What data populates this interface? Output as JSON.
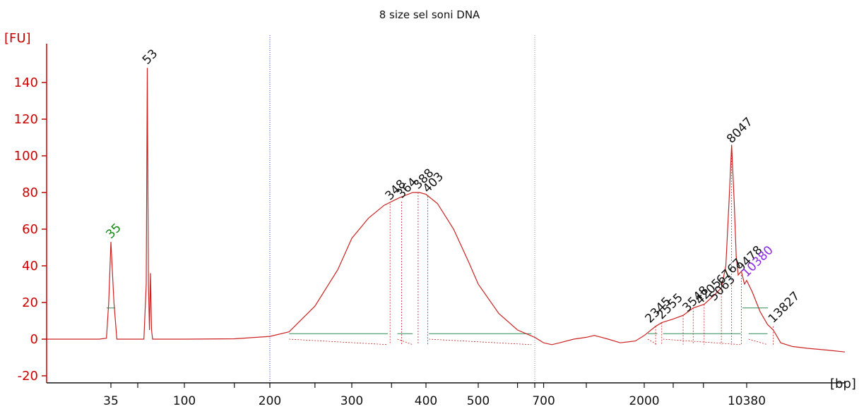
{
  "chart_data": {
    "type": "line",
    "title": "8 size sel soni DNA",
    "y_unit_label": "[FU]",
    "x_unit_label": "[bp]",
    "ylim": [
      -20,
      150
    ],
    "y_ticks": [
      -20,
      0,
      20,
      40,
      60,
      80,
      100,
      120,
      140
    ],
    "x_tick_labels": [
      "35",
      "100",
      "200",
      "300",
      "400",
      "500",
      "700",
      "2000",
      "10380"
    ],
    "region_markers_bp": [
      200,
      650
    ],
    "marker_peaks_bp": [
      35,
      10380
    ],
    "peak_labels": [
      {
        "text": "35",
        "kind": "lower-marker",
        "x_bp": 35,
        "y_fu": 53
      },
      {
        "text": "53",
        "kind": "peak",
        "x_bp": 53,
        "y_fu": 148
      },
      {
        "text": "348",
        "kind": "peak",
        "x_bp": 348,
        "y_fu": 74
      },
      {
        "text": "364",
        "kind": "peak",
        "x_bp": 364,
        "y_fu": 75
      },
      {
        "text": "388",
        "kind": "peak",
        "x_bp": 388,
        "y_fu": 80
      },
      {
        "text": "403",
        "kind": "peak",
        "x_bp": 403,
        "y_fu": 78
      },
      {
        "text": "8047",
        "kind": "peak",
        "x_bp": 8047,
        "y_fu": 105
      },
      {
        "text": "2345",
        "kind": "peak",
        "x_bp": 2345,
        "y_fu": 7
      },
      {
        "text": "2555",
        "kind": "peak",
        "x_bp": 2555,
        "y_fu": 9
      },
      {
        "text": "3548",
        "kind": "peak",
        "x_bp": 3548,
        "y_fu": 13
      },
      {
        "text": "4205",
        "kind": "peak",
        "x_bp": 4205,
        "y_fu": 17
      },
      {
        "text": "5063",
        "kind": "peak",
        "x_bp": 5063,
        "y_fu": 19
      },
      {
        "text": "6767",
        "kind": "peak",
        "x_bp": 6767,
        "y_fu": 28
      },
      {
        "text": "9478",
        "kind": "peak",
        "x_bp": 9478,
        "y_fu": 35
      },
      {
        "text": "10380",
        "kind": "upper-marker",
        "x_bp": 10380,
        "y_fu": 32
      },
      {
        "text": "13827",
        "kind": "peak",
        "x_bp": 13827,
        "y_fu": 7
      }
    ],
    "series": [
      {
        "points": [
          [
            15,
            0
          ],
          [
            30,
            0
          ],
          [
            33,
            0.5
          ],
          [
            34,
            20
          ],
          [
            35,
            53
          ],
          [
            36,
            20
          ],
          [
            37,
            0
          ],
          [
            40,
            0
          ],
          [
            45,
            0
          ],
          [
            50,
            0
          ],
          [
            52,
            30
          ],
          [
            53,
            148
          ],
          [
            54,
            30
          ],
          [
            55,
            5
          ],
          [
            56,
            36
          ],
          [
            57,
            5
          ],
          [
            58,
            0
          ],
          [
            60,
            0
          ],
          [
            80,
            0
          ],
          [
            100,
            0
          ],
          [
            150,
            0.2
          ],
          [
            200,
            1.5
          ],
          [
            220,
            4
          ],
          [
            250,
            18
          ],
          [
            280,
            38
          ],
          [
            300,
            55
          ],
          [
            320,
            66
          ],
          [
            340,
            73
          ],
          [
            360,
            77
          ],
          [
            380,
            80
          ],
          [
            390,
            80
          ],
          [
            400,
            79
          ],
          [
            420,
            74
          ],
          [
            450,
            60
          ],
          [
            480,
            42
          ],
          [
            500,
            30
          ],
          [
            550,
            14
          ],
          [
            600,
            5
          ],
          [
            650,
            1
          ],
          [
            700,
            -2
          ],
          [
            750,
            -3
          ],
          [
            800,
            -2
          ],
          [
            900,
            0
          ],
          [
            1000,
            1
          ],
          [
            1100,
            2
          ],
          [
            1200,
            1
          ],
          [
            1300,
            0
          ],
          [
            1500,
            -2
          ],
          [
            1800,
            -1
          ],
          [
            2000,
            2
          ],
          [
            2345,
            7
          ],
          [
            2555,
            9
          ],
          [
            3000,
            11
          ],
          [
            3548,
            13
          ],
          [
            4205,
            17
          ],
          [
            5063,
            19
          ],
          [
            6000,
            24
          ],
          [
            6767,
            28
          ],
          [
            7300,
            40
          ],
          [
            7700,
            75
          ],
          [
            8047,
            106
          ],
          [
            8400,
            75
          ],
          [
            8700,
            45
          ],
          [
            9000,
            35
          ],
          [
            9478,
            37
          ],
          [
            10000,
            30
          ],
          [
            10380,
            32
          ],
          [
            11000,
            26
          ],
          [
            12000,
            15
          ],
          [
            13000,
            8
          ],
          [
            13827,
            5
          ],
          [
            15000,
            -2
          ],
          [
            17000,
            -4
          ],
          [
            20000,
            -5
          ],
          [
            25000,
            -6
          ],
          [
            30000,
            -7
          ]
        ]
      }
    ],
    "colors": {
      "trace": "#cc2222",
      "axis": "#cc0000",
      "baseline": "#2e8b57",
      "lower_marker_label": "#118811",
      "upper_marker_label": "#8a2be2",
      "region_line": "#3344cc"
    }
  }
}
